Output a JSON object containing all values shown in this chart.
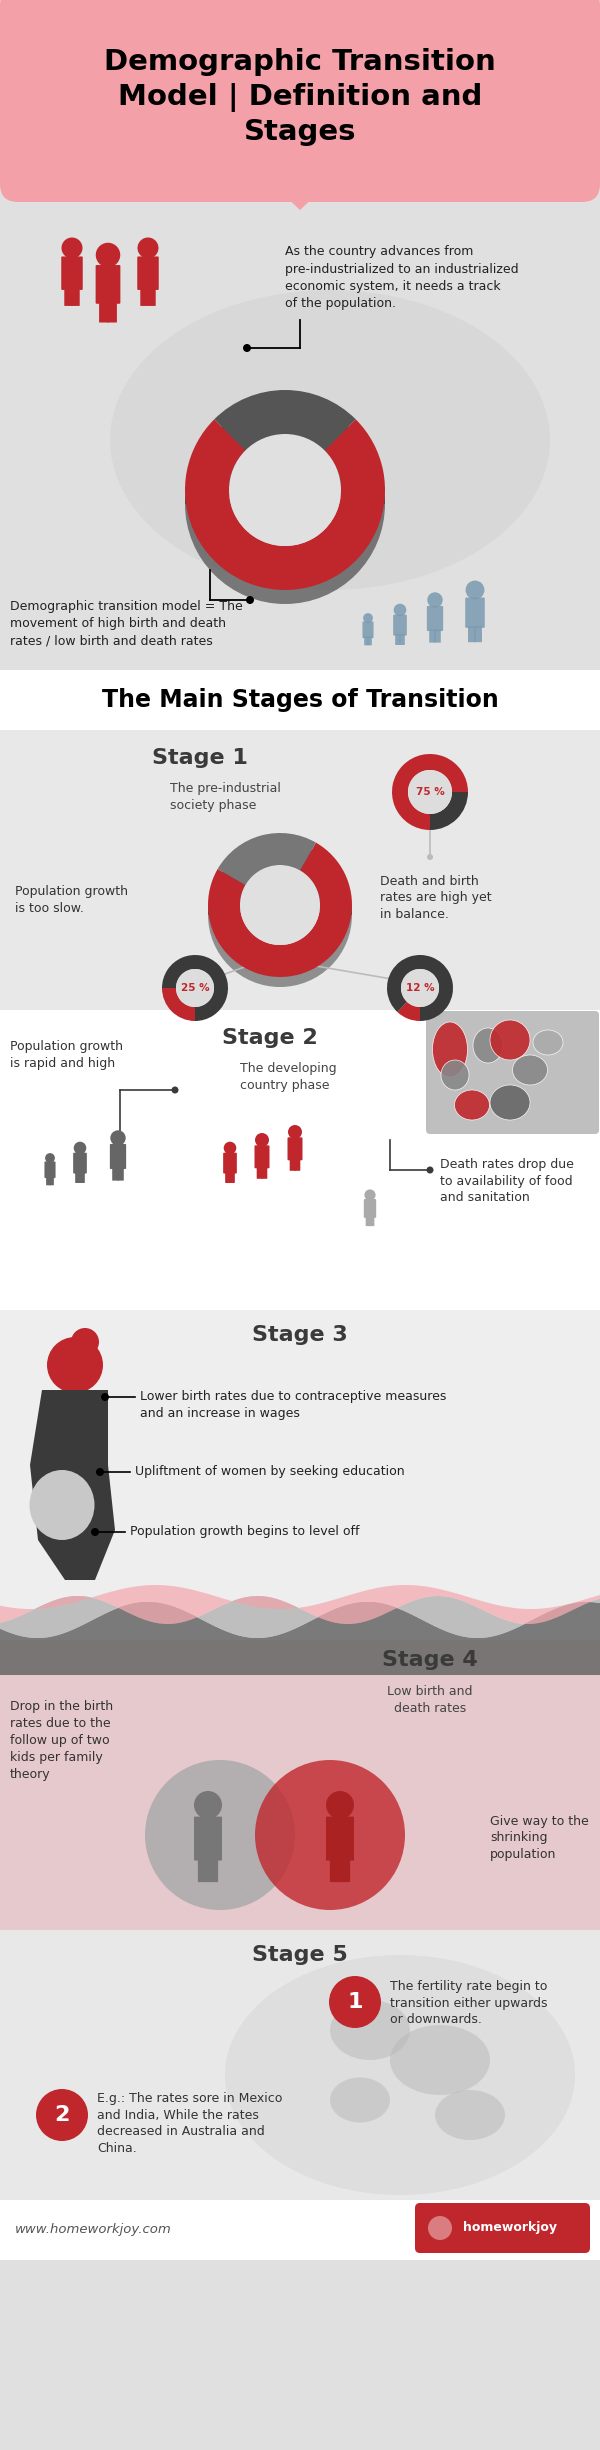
{
  "title": "Demographic Transition\nModel | Definition and\nStages",
  "bg_color": "#e0e0e0",
  "pink": "#f4a0a8",
  "red": "#c0272d",
  "dark_gray": "#3a3a3a",
  "mid_gray": "#666666",
  "light_gray": "#bbbbbb",
  "steel": "#7a9ab0",
  "white": "#ffffff",
  "intro_text": "As the country advances from\npre-industrialized to an industrialized\neconomic system, it needs a track\nof the population.",
  "def_text": "Demographic transition model = The\nmovement of high birth and death\nrates / low birth and death rates",
  "main_stages": "The Main Stages of Transition",
  "s1_title": "Stage 1",
  "s1_sub": "The pre-industrial\nsociety phase",
  "s1_note1": "Population growth\nis too slow.",
  "s1_note2": "Death and birth\nrates are high yet\nin balance.",
  "s1_p1": "75 %",
  "s1_p2": "25 %",
  "s1_p3": "12 %",
  "s2_title": "Stage 2",
  "s2_sub": "The developing\ncountry phase",
  "s2_note1": "Population growth\nis rapid and high",
  "s2_note2": "Death rates drop due\nto availability of food\nand sanitation",
  "s3_title": "Stage 3",
  "s3_b1": "Lower birth rates due to contraceptive measures\nand an increase in wages",
  "s3_b2": "Upliftment of women by seeking education",
  "s3_b3": "Population growth begins to level off",
  "s4_title": "Stage 4",
  "s4_n1": "Drop in the birth\nrates due to the\nfollow up of two\nkids per family\ntheory",
  "s4_n2": "Low birth and\ndeath rates",
  "s4_n3": "Give way to the\nshrinking\npopulation",
  "s5_title": "Stage 5",
  "s5_t1": "The fertility rate begin to\ntransition either upwards\nor downwards.",
  "s5_t2": "E.g.: The rates sore in Mexico\nand India, While the rates\ndecreased in Australia and\nChina.",
  "footer_url": "www.homeworkjoy.com",
  "footer_brand": "homeworkjoy"
}
